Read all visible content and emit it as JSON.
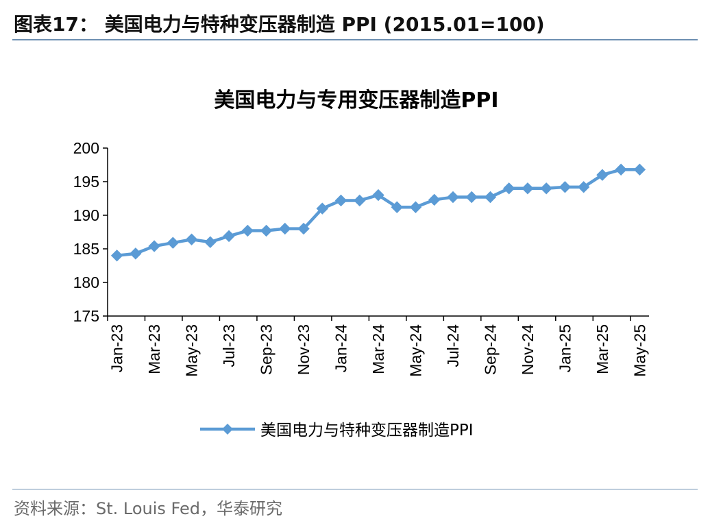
{
  "figure": {
    "title": "图表17： 美国电力与特种变压器制造 PPI (2015.01=100)",
    "source": "资料来源：St. Louis Fed，华泰研究"
  },
  "colors": {
    "series": "#5b9bd5",
    "axis": "#000000",
    "rule": "#6d8fb1"
  },
  "chart_data": {
    "type": "line",
    "title": "美国电力与专用变压器制造PPI",
    "xlabel": "",
    "ylabel": "",
    "ylim": [
      175,
      200
    ],
    "yticks": [
      175,
      180,
      185,
      190,
      195,
      200
    ],
    "grid": false,
    "legend_position": "bottom",
    "x": [
      "Jan-23",
      "Feb-23",
      "Mar-23",
      "Apr-23",
      "May-23",
      "Jun-23",
      "Jul-23",
      "Aug-23",
      "Sep-23",
      "Oct-23",
      "Nov-23",
      "Dec-23",
      "Jan-24",
      "Feb-24",
      "Mar-24",
      "Apr-24",
      "May-24",
      "Jun-24",
      "Jul-24",
      "Aug-24",
      "Sep-24",
      "Oct-24",
      "Nov-24",
      "Dec-24",
      "Jan-25",
      "Feb-25",
      "Mar-25",
      "Apr-25",
      "May-25"
    ],
    "xtick_labels": [
      "Jan-23",
      "Mar-23",
      "May-23",
      "Jul-23",
      "Sep-23",
      "Nov-23",
      "Jan-24",
      "Mar-24",
      "May-24",
      "Jul-24",
      "Sep-24",
      "Nov-24",
      "Jan-25",
      "Mar-25",
      "May-25"
    ],
    "series": [
      {
        "name": "美国电力与特种变压器制造PPI",
        "marker": "diamond",
        "values": [
          184.0,
          184.3,
          185.4,
          185.9,
          186.4,
          186.0,
          186.9,
          187.7,
          187.7,
          188.0,
          188.0,
          191.0,
          192.2,
          192.2,
          193.0,
          191.2,
          191.2,
          192.3,
          192.7,
          192.7,
          192.7,
          194.0,
          194.0,
          194.0,
          194.2,
          194.2,
          196.0,
          196.8,
          196.8
        ]
      }
    ]
  }
}
